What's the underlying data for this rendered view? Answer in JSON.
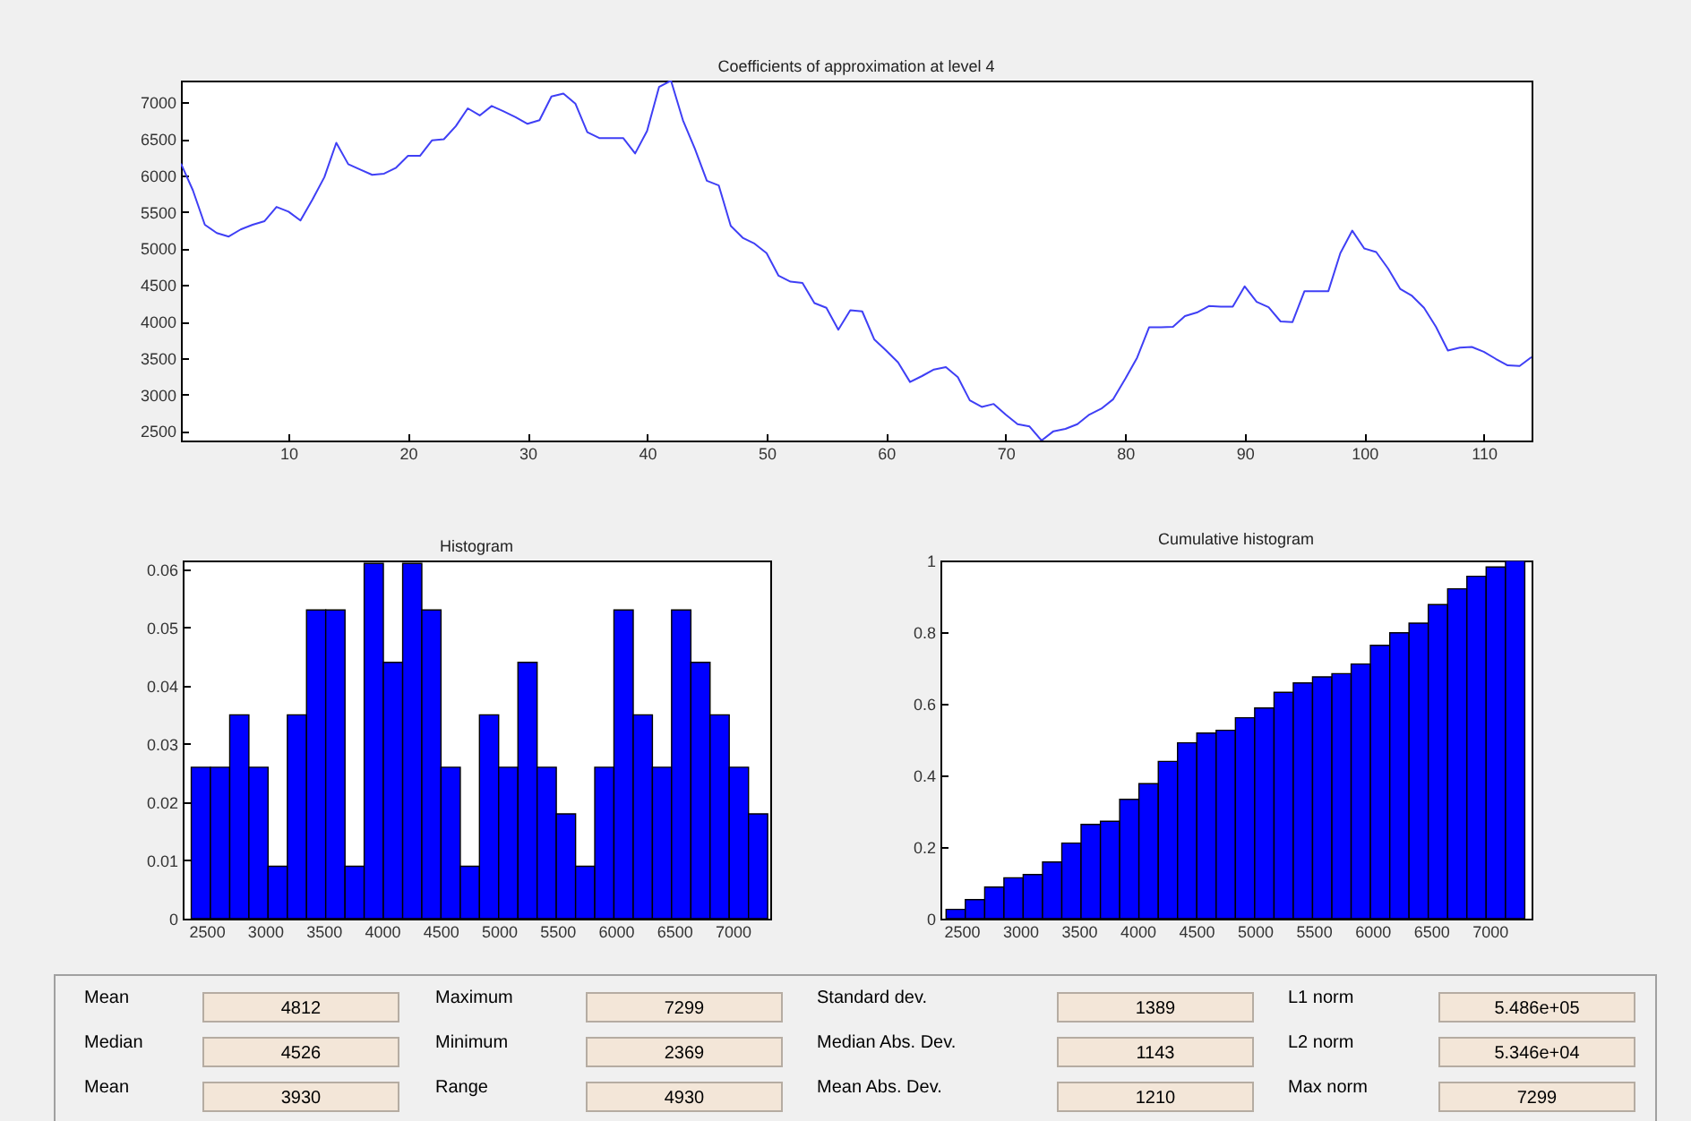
{
  "chart_data": [
    {
      "type": "line",
      "title": "Coefficients of approximation at level 4",
      "marker": "none",
      "line_style": "solid",
      "x": [
        1,
        2,
        3,
        4,
        5,
        6,
        7,
        8,
        9,
        10,
        11,
        12,
        13,
        14,
        15,
        16,
        17,
        18,
        19,
        20,
        21,
        22,
        23,
        24,
        25,
        26,
        27,
        28,
        29,
        30,
        31,
        32,
        33,
        34,
        35,
        36,
        37,
        38,
        39,
        40,
        41,
        42,
        43,
        44,
        45,
        46,
        47,
        48,
        49,
        50,
        51,
        52,
        53,
        54,
        55,
        56,
        57,
        58,
        59,
        60,
        61,
        62,
        63,
        64,
        65,
        66,
        67,
        68,
        69,
        70,
        71,
        72,
        73,
        74,
        75,
        76,
        77,
        78,
        79,
        80,
        81,
        82,
        83,
        84,
        85,
        86,
        87,
        88,
        89,
        90,
        91,
        92,
        93,
        94,
        95,
        96,
        97,
        98,
        99,
        100,
        101,
        102,
        103,
        104,
        105,
        106,
        107,
        108,
        109,
        110,
        111,
        112,
        113,
        114
      ],
      "series": [
        {
          "color": "#3f3ff5",
          "values": [
            6163,
            5797,
            5325,
            5211,
            5163,
            5260,
            5325,
            5374,
            5569,
            5504,
            5382,
            5667,
            5976,
            6447,
            6154,
            6081,
            6008,
            6024,
            6106,
            6268,
            6268,
            6480,
            6496,
            6675,
            6919,
            6821,
            6951,
            6878,
            6797,
            6707,
            6756,
            7081,
            7122,
            6984,
            6593,
            6512,
            6512,
            6512,
            6301,
            6610,
            7211,
            7299,
            6756,
            6366,
            5927,
            5862,
            5309,
            5146,
            5065,
            4935,
            4626,
            4545,
            4528,
            4252,
            4187,
            3886,
            4154,
            4138,
            3756,
            3602,
            3439,
            3171,
            3252,
            3341,
            3374,
            3236,
            2919,
            2829,
            2870,
            2724,
            2593,
            2561,
            2369,
            2496,
            2528,
            2593,
            2724,
            2805,
            2935,
            3211,
            3504,
            3919,
            3919,
            3927,
            4073,
            4122,
            4211,
            4203,
            4203,
            4480,
            4268,
            4195,
            4000,
            3992,
            4415,
            4415,
            4415,
            4935,
            5244,
            5000,
            4951,
            4724,
            4447,
            4350,
            4187,
            3927,
            3602,
            3642,
            3650,
            3585,
            3488,
            3398,
            3390,
            3512
          ]
        }
      ],
      "xlim": [
        1,
        114
      ],
      "xticks": [
        10,
        20,
        30,
        40,
        50,
        60,
        70,
        80,
        90,
        100,
        110
      ],
      "ylim": [
        2369,
        7299
      ],
      "yticks": [
        2500,
        3000,
        3500,
        4000,
        4500,
        5000,
        5500,
        6000,
        6500,
        7000
      ]
    },
    {
      "type": "histogram",
      "title": "Histogram",
      "color": "#0000ff",
      "bins": [
        2369,
        2533,
        2698,
        2862,
        3026,
        3191,
        3355,
        3519,
        3684,
        3848,
        4012,
        4177,
        4341,
        4505,
        4670,
        4834,
        4998,
        5163,
        5327,
        5491,
        5656,
        5820,
        5984,
        6149,
        6313,
        6477,
        6642,
        6806,
        6970,
        7135,
        7299
      ],
      "values": [
        0.026,
        0.026,
        0.035,
        0.026,
        0.009,
        0.035,
        0.053,
        0.053,
        0.009,
        0.061,
        0.044,
        0.061,
        0.053,
        0.026,
        0.009,
        0.035,
        0.026,
        0.044,
        0.026,
        0.018,
        0.009,
        0.026,
        0.053,
        0.035,
        0.026,
        0.053,
        0.044,
        0.035,
        0.026,
        0.018
      ],
      "xlim": [
        2296,
        7321
      ],
      "xticks": [
        2500,
        3000,
        3500,
        4000,
        4500,
        5000,
        5500,
        6000,
        6500,
        7000
      ],
      "ylim": [
        0,
        0.0615
      ],
      "yticks": [
        0,
        0.01,
        0.02,
        0.03,
        0.04,
        0.05,
        0.06
      ]
    },
    {
      "type": "histogram",
      "title": "Cumulative histogram",
      "color": "#0000ff",
      "bins": [
        2369,
        2533,
        2698,
        2862,
        3026,
        3191,
        3355,
        3519,
        3684,
        3848,
        4012,
        4177,
        4341,
        4505,
        4670,
        4834,
        4998,
        5163,
        5327,
        5491,
        5656,
        5820,
        5984,
        6149,
        6313,
        6477,
        6642,
        6806,
        6970,
        7135,
        7299
      ],
      "values": [
        0.026,
        0.053,
        0.088,
        0.114,
        0.123,
        0.158,
        0.211,
        0.263,
        0.272,
        0.333,
        0.377,
        0.439,
        0.491,
        0.518,
        0.526,
        0.561,
        0.588,
        0.632,
        0.658,
        0.675,
        0.684,
        0.711,
        0.763,
        0.798,
        0.825,
        0.877,
        0.921,
        0.956,
        0.982,
        1
      ],
      "xlim": [
        2321,
        7357
      ],
      "xticks": [
        2500,
        3000,
        3500,
        4000,
        4500,
        5000,
        5500,
        6000,
        6500,
        7000
      ],
      "ylim": [
        0,
        1
      ],
      "yticks": [
        0,
        0.2,
        0.4,
        0.6,
        0.8,
        1
      ]
    },
    {
      "type": "other",
      "annotations": [
        "Mean",
        "4812",
        "Maximum",
        "7299",
        "Standard dev.",
        "1389",
        "L1 norm",
        "5.486e+05",
        "Median",
        "4526",
        "Minimum",
        "2369",
        "Median Abs. Dev.",
        "1143",
        "L2 norm",
        "5.346e+04",
        "Mean",
        "3930",
        "Range",
        "4930",
        "Mean Abs. Dev.",
        "1210",
        "Max norm",
        "7299"
      ]
    }
  ]
}
